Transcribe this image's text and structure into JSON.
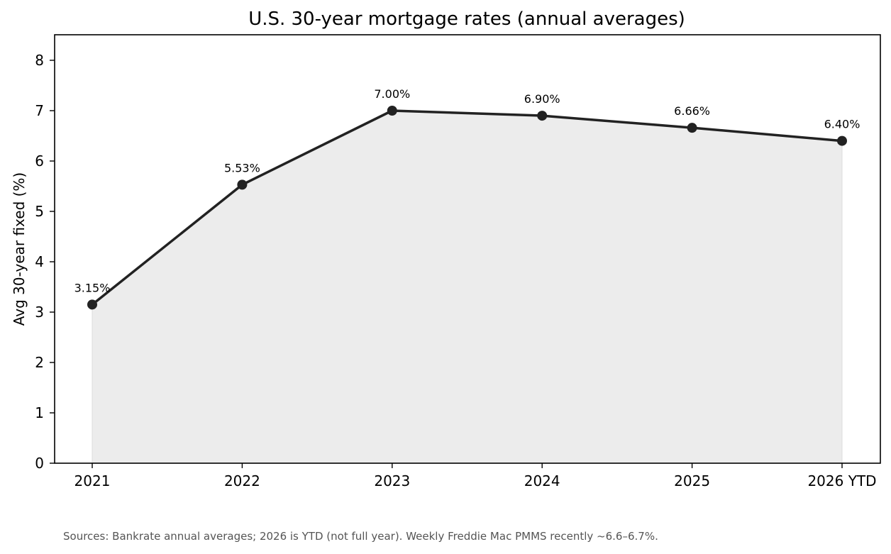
{
  "chart_data": {
    "type": "line",
    "title": "U.S. 30-year mortgage rates (annual averages)",
    "xlabel": "",
    "ylabel": "Avg 30-year fixed (%)",
    "categories": [
      "2021",
      "2022",
      "2023",
      "2024",
      "2025",
      "2026 YTD"
    ],
    "values": [
      3.15,
      5.53,
      7.0,
      6.9,
      6.66,
      6.4
    ],
    "data_labels": [
      "3.15%",
      "5.53%",
      "7.00%",
      "6.90%",
      "6.66%",
      "6.40%"
    ],
    "ylim": [
      0,
      8.5
    ],
    "yticks": [
      "0",
      "1",
      "2",
      "3",
      "4",
      "5",
      "6",
      "7",
      "8"
    ],
    "grid": false,
    "area_fill": true,
    "line_color": "#222222",
    "fill_color": "#ececec",
    "source_note": "Sources: Bankrate annual averages; 2026 is YTD (not full year). Weekly Freddie Mac PMMS recently ~6.6–6.7%."
  }
}
